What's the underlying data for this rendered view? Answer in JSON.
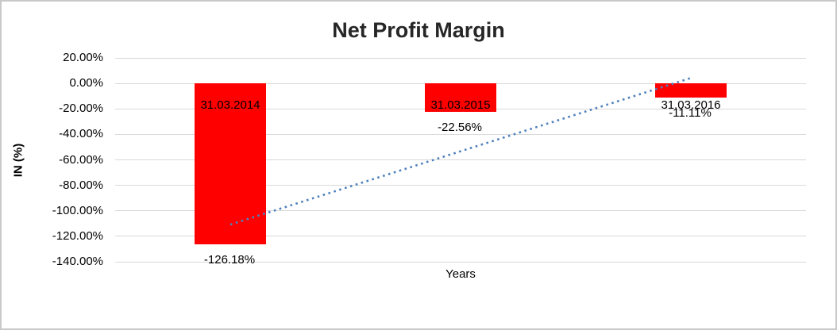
{
  "chart_data": {
    "type": "bar",
    "title": "Net Profit Margin",
    "xlabel": "Years",
    "ylabel": "IN (%)",
    "categories": [
      "31.03.2014",
      "31.03.2015",
      "31.03.2016"
    ],
    "values": [
      -126.18,
      -22.56,
      -11.11
    ],
    "value_labels": [
      "-126.18%",
      "-22.56%",
      "-11.11%"
    ],
    "y_tick_labels": [
      "20.00%",
      "0.00%",
      "-20.00%",
      "-40.00%",
      "-60.00%",
      "-80.00%",
      "-100.00%",
      "-120.00%",
      "-140.00%"
    ],
    "ylim": [
      -140,
      20
    ],
    "y_tick_step": 20,
    "grid": true,
    "legend_position": "none",
    "bar_color": "#ff0000",
    "label_color": "#000000",
    "gridline_color": "#d9d9d9",
    "background_color": "#ffffff",
    "trendline": {
      "type": "linear",
      "style": "dotted",
      "color": "#4f81bd",
      "start_value": -110.8,
      "end_value": 4.25
    }
  }
}
